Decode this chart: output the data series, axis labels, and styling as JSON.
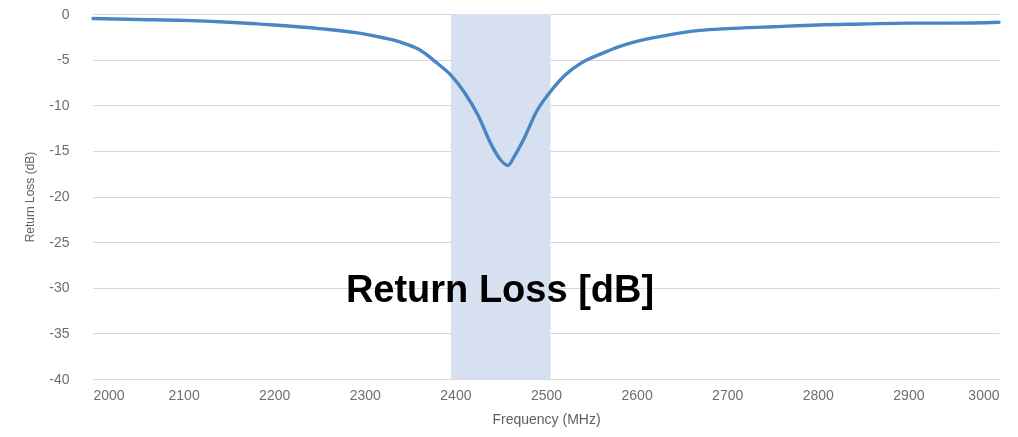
{
  "chart_data": {
    "type": "line",
    "title": "Return Loss [dB]",
    "xlabel": "Frequency (MHz)",
    "ylabel": "Return Loss (dB)",
    "x": [
      2000,
      2050,
      2100,
      2150,
      2200,
      2250,
      2300,
      2320,
      2340,
      2360,
      2380,
      2395,
      2410,
      2425,
      2440,
      2450,
      2458,
      2465,
      2475,
      2490,
      2505,
      2520,
      2540,
      2560,
      2580,
      2600,
      2630,
      2670,
      2700,
      2750,
      2800,
      2850,
      2900,
      2950,
      3000
    ],
    "series": [
      {
        "color": "#4a86c4",
        "values": [
          -0.5,
          -0.6,
          -0.7,
          -0.9,
          -1.2,
          -1.6,
          -2.2,
          -2.6,
          -3.1,
          -3.9,
          -5.4,
          -6.7,
          -8.6,
          -11.1,
          -14.4,
          -16.0,
          -16.6,
          -15.6,
          -13.8,
          -10.6,
          -8.5,
          -6.8,
          -5.3,
          -4.4,
          -3.6,
          -3.0,
          -2.4,
          -1.8,
          -1.6,
          -1.4,
          -1.2,
          -1.1,
          -1.0,
          -1.0,
          -0.9
        ]
      }
    ],
    "xlim": [
      2000,
      3000
    ],
    "ylim": [
      -40,
      0
    ],
    "xticks": [
      2000,
      2100,
      2200,
      2300,
      2400,
      2500,
      2600,
      2700,
      2800,
      2900,
      3000
    ],
    "yticks": [
      -40,
      -35,
      -30,
      -25,
      -20,
      -15,
      -10,
      -5,
      0
    ],
    "grid": "y",
    "bands": [
      {
        "axis": "x",
        "from": 2395,
        "to": 2505,
        "color": "#d6e0f0"
      }
    ]
  }
}
